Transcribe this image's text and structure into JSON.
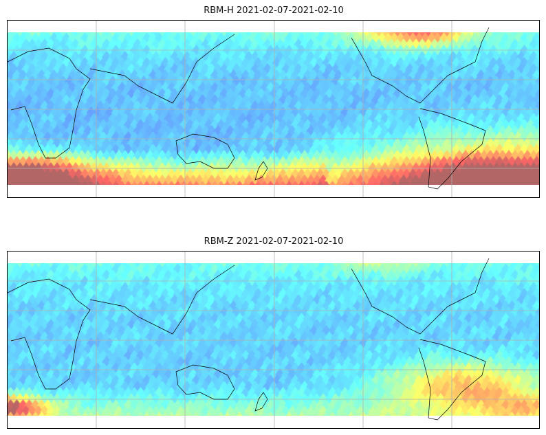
{
  "figure": {
    "panels": [
      {
        "title": "RBM-H 2021-02-07-2021-02-10",
        "field": "H"
      },
      {
        "title": "RBM-Z 2021-02-07-2021-02-10",
        "field": "Z"
      }
    ],
    "colormap": "jet",
    "alpha": 0.6,
    "gridlines": true,
    "coastlines": true,
    "gridline_color": "#b0b0b0",
    "coastline_color": "#000000"
  }
}
